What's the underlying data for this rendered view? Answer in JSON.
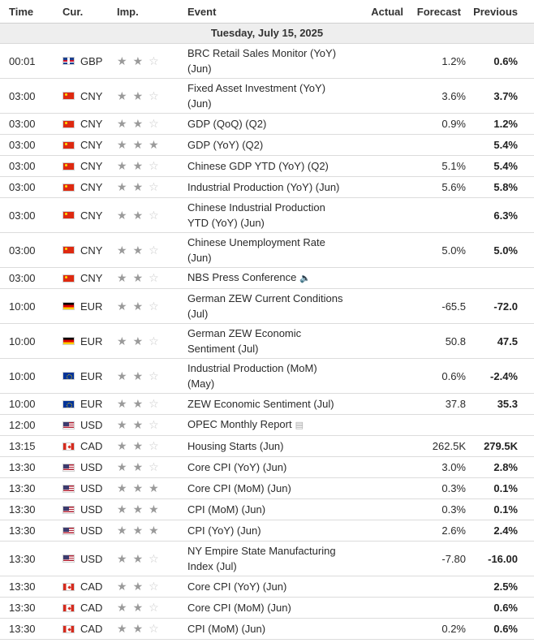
{
  "header": {
    "time": "Time",
    "cur": "Cur.",
    "imp": "Imp.",
    "event": "Event",
    "actual": "Actual",
    "forecast": "Forecast",
    "previous": "Previous"
  },
  "date_label": "Tuesday, July 15, 2025",
  "rows": [
    {
      "time": "00:01",
      "flag": "gb",
      "cur": "GBP",
      "imp": 2,
      "event": "BRC Retail Sales Monitor (YoY) (Jun)",
      "actual": "",
      "forecast": "1.2%",
      "previous": "0.6%",
      "tall": true,
      "icon": ""
    },
    {
      "time": "03:00",
      "flag": "cn",
      "cur": "CNY",
      "imp": 2,
      "event": "Fixed Asset Investment (YoY) (Jun)",
      "actual": "",
      "forecast": "3.6%",
      "previous": "3.7%",
      "tall": true,
      "icon": ""
    },
    {
      "time": "03:00",
      "flag": "cn",
      "cur": "CNY",
      "imp": 2,
      "event": "GDP (QoQ) (Q2)",
      "actual": "",
      "forecast": "0.9%",
      "previous": "1.2%",
      "tall": false,
      "icon": ""
    },
    {
      "time": "03:00",
      "flag": "cn",
      "cur": "CNY",
      "imp": 3,
      "event": "GDP (YoY) (Q2)",
      "actual": "",
      "forecast": "",
      "previous": "5.4%",
      "tall": false,
      "icon": ""
    },
    {
      "time": "03:00",
      "flag": "cn",
      "cur": "CNY",
      "imp": 2,
      "event": "Chinese GDP YTD (YoY) (Q2)",
      "actual": "",
      "forecast": "5.1%",
      "previous": "5.4%",
      "tall": false,
      "icon": ""
    },
    {
      "time": "03:00",
      "flag": "cn",
      "cur": "CNY",
      "imp": 2,
      "event": "Industrial Production (YoY) (Jun)",
      "actual": "",
      "forecast": "5.6%",
      "previous": "5.8%",
      "tall": false,
      "icon": ""
    },
    {
      "time": "03:00",
      "flag": "cn",
      "cur": "CNY",
      "imp": 2,
      "event": "Chinese Industrial Production YTD (YoY) (Jun)",
      "actual": "",
      "forecast": "",
      "previous": "6.3%",
      "tall": true,
      "icon": ""
    },
    {
      "time": "03:00",
      "flag": "cn",
      "cur": "CNY",
      "imp": 2,
      "event": "Chinese Unemployment Rate (Jun)",
      "actual": "",
      "forecast": "5.0%",
      "previous": "5.0%",
      "tall": true,
      "icon": ""
    },
    {
      "time": "03:00",
      "flag": "cn",
      "cur": "CNY",
      "imp": 2,
      "event": "NBS Press Conference",
      "actual": "",
      "forecast": "",
      "previous": "",
      "tall": false,
      "icon": "speaker-icon"
    },
    {
      "time": "10:00",
      "flag": "de",
      "cur": "EUR",
      "imp": 2,
      "event": "German ZEW Current Conditions (Jul)",
      "actual": "",
      "forecast": "-65.5",
      "previous": "-72.0",
      "tall": true,
      "icon": ""
    },
    {
      "time": "10:00",
      "flag": "de",
      "cur": "EUR",
      "imp": 2,
      "event": "German ZEW Economic Sentiment (Jul)",
      "actual": "",
      "forecast": "50.8",
      "previous": "47.5",
      "tall": true,
      "icon": ""
    },
    {
      "time": "10:00",
      "flag": "eu",
      "cur": "EUR",
      "imp": 2,
      "event": "Industrial Production (MoM) (May)",
      "actual": "",
      "forecast": "0.6%",
      "previous": "-2.4%",
      "tall": true,
      "icon": ""
    },
    {
      "time": "10:00",
      "flag": "eu",
      "cur": "EUR",
      "imp": 2,
      "event": "ZEW Economic Sentiment (Jul)",
      "actual": "",
      "forecast": "37.8",
      "previous": "35.3",
      "tall": false,
      "icon": ""
    },
    {
      "time": "12:00",
      "flag": "us",
      "cur": "USD",
      "imp": 2,
      "event": "OPEC Monthly Report",
      "actual": "",
      "forecast": "",
      "previous": "",
      "tall": false,
      "icon": "document-icon"
    },
    {
      "time": "13:15",
      "flag": "ca",
      "cur": "CAD",
      "imp": 2,
      "event": "Housing Starts (Jun)",
      "actual": "",
      "forecast": "262.5K",
      "previous": "279.5K",
      "tall": false,
      "icon": ""
    },
    {
      "time": "13:30",
      "flag": "us",
      "cur": "USD",
      "imp": 2,
      "event": "Core CPI (YoY) (Jun)",
      "actual": "",
      "forecast": "3.0%",
      "previous": "2.8%",
      "tall": false,
      "icon": ""
    },
    {
      "time": "13:30",
      "flag": "us",
      "cur": "USD",
      "imp": 3,
      "event": "Core CPI (MoM) (Jun)",
      "actual": "",
      "forecast": "0.3%",
      "previous": "0.1%",
      "tall": false,
      "icon": ""
    },
    {
      "time": "13:30",
      "flag": "us",
      "cur": "USD",
      "imp": 3,
      "event": "CPI (MoM) (Jun)",
      "actual": "",
      "forecast": "0.3%",
      "previous": "0.1%",
      "tall": false,
      "icon": ""
    },
    {
      "time": "13:30",
      "flag": "us",
      "cur": "USD",
      "imp": 3,
      "event": "CPI (YoY) (Jun)",
      "actual": "",
      "forecast": "2.6%",
      "previous": "2.4%",
      "tall": false,
      "icon": ""
    },
    {
      "time": "13:30",
      "flag": "us",
      "cur": "USD",
      "imp": 2,
      "event": "NY Empire State Manufacturing Index (Jul)",
      "actual": "",
      "forecast": "-7.80",
      "previous": "-16.00",
      "tall": true,
      "icon": ""
    },
    {
      "time": "13:30",
      "flag": "ca",
      "cur": "CAD",
      "imp": 2,
      "event": "Core CPI (YoY) (Jun)",
      "actual": "",
      "forecast": "",
      "previous": "2.5%",
      "tall": false,
      "icon": ""
    },
    {
      "time": "13:30",
      "flag": "ca",
      "cur": "CAD",
      "imp": 2,
      "event": "Core CPI (MoM) (Jun)",
      "actual": "",
      "forecast": "",
      "previous": "0.6%",
      "tall": false,
      "icon": ""
    },
    {
      "time": "13:30",
      "flag": "ca",
      "cur": "CAD",
      "imp": 2,
      "event": "CPI (MoM) (Jun)",
      "actual": "",
      "forecast": "0.2%",
      "previous": "0.6%",
      "tall": false,
      "icon": ""
    }
  ]
}
